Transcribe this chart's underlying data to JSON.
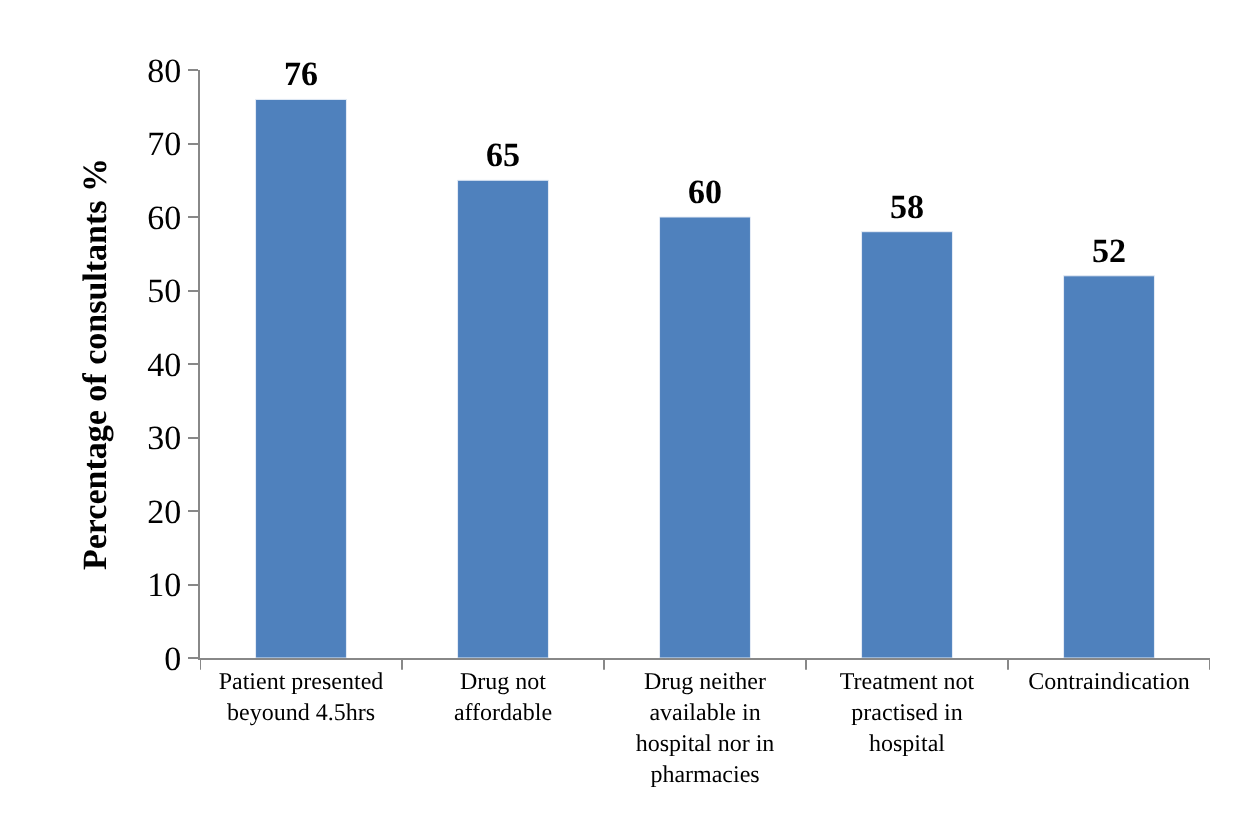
{
  "chart_data": {
    "type": "bar",
    "ylabel": "Percentage of consultants %",
    "categories": [
      "Patient presented\nbeyound 4.5hrs",
      "Drug not\naffordable",
      "Drug neither\navailable in\nhospital nor in\npharmacies",
      "Treatment not\npractised in\nhospital",
      "Contraindication"
    ],
    "values": [
      76,
      65,
      60,
      58,
      52
    ],
    "color": "#4f81bd",
    "ylim": [
      0,
      80
    ],
    "yticks": [
      0,
      10,
      20,
      30,
      40,
      50,
      60,
      70,
      80
    ],
    "data_labels": true,
    "legend": false
  }
}
